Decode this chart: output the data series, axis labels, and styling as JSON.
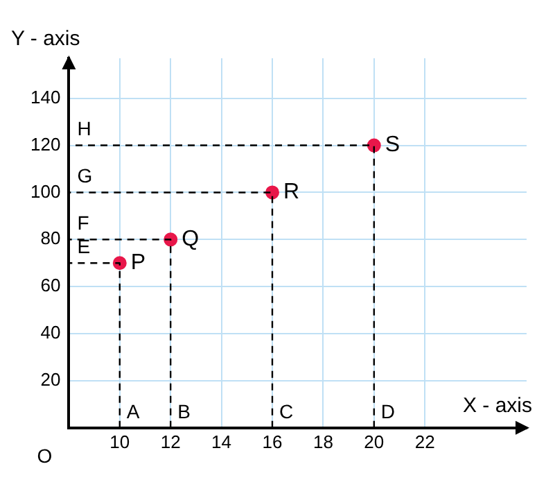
{
  "chart_data": {
    "type": "scatter",
    "xlabel": "X - axis",
    "ylabel": "Y - axis",
    "xlim": [
      8,
      26
    ],
    "ylim": [
      0,
      157
    ],
    "xticks": [
      10,
      12,
      14,
      16,
      18,
      20,
      22
    ],
    "yticks": [
      20,
      40,
      60,
      80,
      100,
      120,
      140
    ],
    "grid": true,
    "legend": false,
    "series": [
      {
        "type": "line",
        "line_style": "dashed",
        "marker": "none",
        "color": "#000000",
        "x": [
          10,
          10,
          8
        ],
        "values": [
          0,
          70,
          70
        ]
      },
      {
        "type": "line",
        "line_style": "dashed",
        "marker": "none",
        "color": "#000000",
        "x": [
          12,
          12,
          8
        ],
        "values": [
          0,
          80,
          80
        ]
      },
      {
        "type": "line",
        "line_style": "dashed",
        "marker": "none",
        "color": "#000000",
        "x": [
          16,
          16,
          8
        ],
        "values": [
          0,
          100,
          100
        ]
      },
      {
        "type": "line",
        "line_style": "dashed",
        "marker": "none",
        "color": "#000000",
        "x": [
          20,
          20,
          8
        ],
        "values": [
          0,
          120,
          120
        ]
      },
      {
        "type": "scatter",
        "marker": "circle",
        "color": "#e8174a",
        "x": [
          10,
          12,
          16,
          20
        ],
        "values": [
          70,
          80,
          100,
          120
        ]
      }
    ],
    "annotations": [
      {
        "text": "P",
        "x": 10,
        "y": 70
      },
      {
        "text": "Q",
        "x": 12,
        "y": 80
      },
      {
        "text": "R",
        "x": 16,
        "y": 100
      },
      {
        "text": "S",
        "x": 20,
        "y": 120
      },
      {
        "text": "A",
        "x": 10,
        "y": 0
      },
      {
        "text": "B",
        "x": 12,
        "y": 0
      },
      {
        "text": "C",
        "x": 16,
        "y": 0
      },
      {
        "text": "D",
        "x": 20,
        "y": 0
      },
      {
        "text": "E",
        "x": 8,
        "y": 70
      },
      {
        "text": "F",
        "x": 8,
        "y": 80
      },
      {
        "text": "G",
        "x": 8,
        "y": 100
      },
      {
        "text": "H",
        "x": 8,
        "y": 120
      },
      "O"
    ]
  }
}
